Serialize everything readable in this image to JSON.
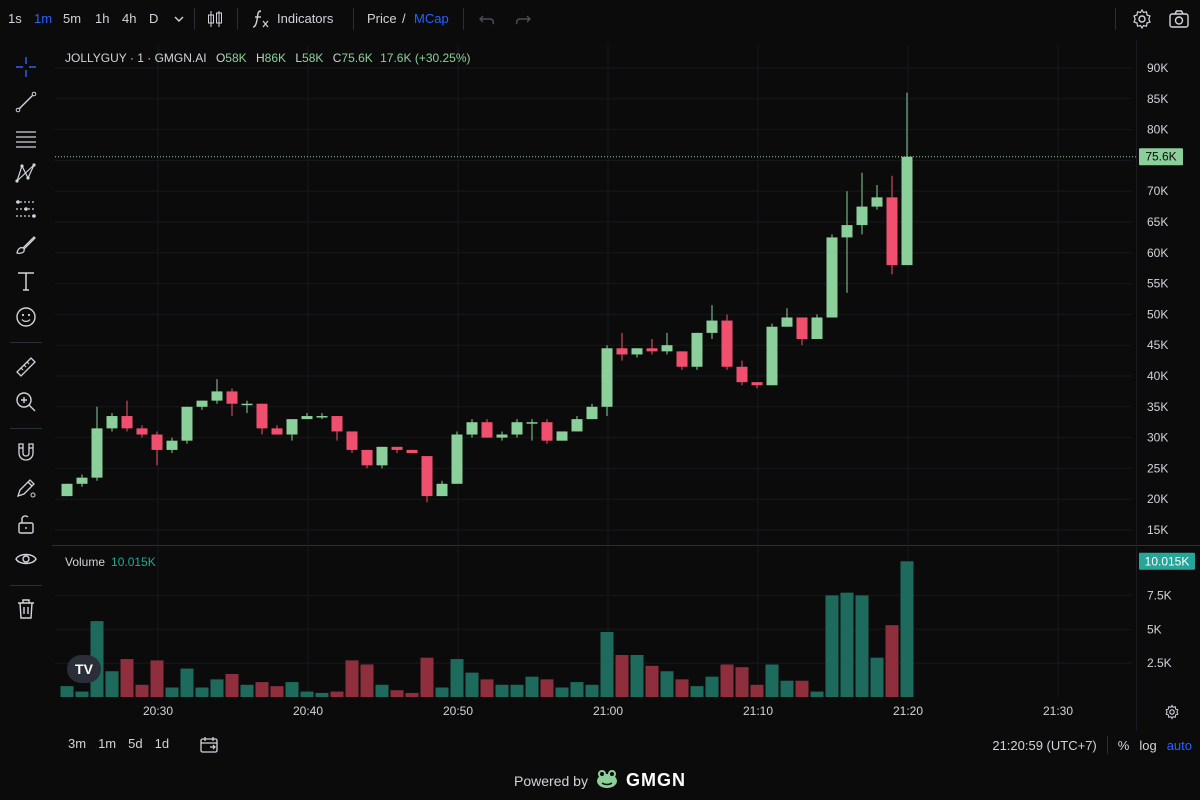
{
  "toolbar": {
    "timeframes": [
      "1s",
      "1m",
      "5m",
      "1h",
      "4h",
      "D"
    ],
    "active_timeframe": "1m",
    "indicators_label": "Indicators",
    "price_label": "Price",
    "price_sep": "/",
    "mcap_label": "MCap"
  },
  "legend": {
    "symbol": "JOLLYGUY · 1 · GMGN.AI",
    "open_key": "O",
    "open": "58K",
    "high_key": "H",
    "high": "86K",
    "low_key": "L",
    "low": "58K",
    "close_key": "C",
    "close": "75.6K",
    "change": "17.6K (+30.25%)"
  },
  "volume_legend": {
    "label": "Volume",
    "value": "10.015K"
  },
  "bottom": {
    "ranges": [
      "3m",
      "1m",
      "5d",
      "1d"
    ],
    "clock": "21:20:59 (UTC+7)",
    "percent": "%",
    "log": "log",
    "auto": "auto"
  },
  "powered": {
    "text": "Powered by",
    "brand": "GMGN"
  },
  "tv_logo": "TV",
  "colors": {
    "up": "#8bd09a",
    "down": "#f0506e",
    "vol_up": "#1e6b5e",
    "vol_down": "#8f2f3d",
    "accent": "#2962ff",
    "background": "#0b0b0b"
  },
  "chart_data": {
    "type": "candlestick",
    "price_axis": {
      "ticks": [
        "15K",
        "20K",
        "25K",
        "30K",
        "35K",
        "40K",
        "45K",
        "50K",
        "55K",
        "60K",
        "65K",
        "70K",
        "75K",
        "80K",
        "85K",
        "90K"
      ],
      "last_label": "75.6K",
      "last_value": 75.6
    },
    "volume_axis": {
      "ticks": [
        "2.5K",
        "5K",
        "7.5K"
      ],
      "last_label": "10.015K",
      "last_value": 10.015
    },
    "time_axis": {
      "ticks": [
        "20:30",
        "20:40",
        "20:50",
        "21:00",
        "21:10",
        "21:20",
        "21:30"
      ]
    },
    "candles": [
      {
        "o": 20.5,
        "h": 22.5,
        "l": 20.5,
        "c": 22.5,
        "v": 0.8
      },
      {
        "o": 22.5,
        "h": 24,
        "l": 22,
        "c": 23.5,
        "v": 0.4
      },
      {
        "o": 23.5,
        "h": 35,
        "l": 23,
        "c": 31.5,
        "v": 5.6
      },
      {
        "o": 31.5,
        "h": 34,
        "l": 31,
        "c": 33.5,
        "v": 1.9
      },
      {
        "o": 33.5,
        "h": 36,
        "l": 31,
        "c": 31.5,
        "v": 2.8
      },
      {
        "o": 31.5,
        "h": 32,
        "l": 30,
        "c": 30.5,
        "v": 0.9
      },
      {
        "o": 30.5,
        "h": 31,
        "l": 25.5,
        "c": 28,
        "v": 2.7
      },
      {
        "o": 28,
        "h": 30,
        "l": 27.5,
        "c": 29.5,
        "v": 0.7
      },
      {
        "o": 29.5,
        "h": 35,
        "l": 29,
        "c": 35,
        "v": 2.1
      },
      {
        "o": 35,
        "h": 36,
        "l": 34.5,
        "c": 36,
        "v": 0.7
      },
      {
        "o": 36,
        "h": 39.5,
        "l": 35.5,
        "c": 37.5,
        "v": 1.3
      },
      {
        "o": 37.5,
        "h": 38,
        "l": 33.5,
        "c": 35.5,
        "v": 1.7
      },
      {
        "o": 35.5,
        "h": 36,
        "l": 34,
        "c": 35.5,
        "v": 0.9
      },
      {
        "o": 35.5,
        "h": 35.5,
        "l": 30.5,
        "c": 31.5,
        "v": 1.1
      },
      {
        "o": 31.5,
        "h": 32,
        "l": 30.5,
        "c": 30.5,
        "v": 0.8
      },
      {
        "o": 30.5,
        "h": 33,
        "l": 29.5,
        "c": 33,
        "v": 1.1
      },
      {
        "o": 33,
        "h": 34,
        "l": 33,
        "c": 33.5,
        "v": 0.4
      },
      {
        "o": 33.5,
        "h": 34,
        "l": 33,
        "c": 33.5,
        "v": 0.3
      },
      {
        "o": 33.5,
        "h": 33.5,
        "l": 29.5,
        "c": 31,
        "v": 0.4
      },
      {
        "o": 31,
        "h": 31,
        "l": 27.5,
        "c": 28,
        "v": 2.7
      },
      {
        "o": 28,
        "h": 28,
        "l": 25,
        "c": 25.5,
        "v": 2.4
      },
      {
        "o": 25.5,
        "h": 28.5,
        "l": 25,
        "c": 28.5,
        "v": 0.9
      },
      {
        "o": 28.5,
        "h": 28.5,
        "l": 27.5,
        "c": 28,
        "v": 0.5
      },
      {
        "o": 28,
        "h": 28,
        "l": 27.5,
        "c": 27.5,
        "v": 0.3
      },
      {
        "o": 27,
        "h": 27,
        "l": 19.5,
        "c": 20.5,
        "v": 2.9
      },
      {
        "o": 20.5,
        "h": 23,
        "l": 20.5,
        "c": 22.5,
        "v": 0.7
      },
      {
        "o": 22.5,
        "h": 31,
        "l": 22.5,
        "c": 30.5,
        "v": 2.8
      },
      {
        "o": 30.5,
        "h": 33,
        "l": 30,
        "c": 32.5,
        "v": 1.8
      },
      {
        "o": 32.5,
        "h": 33,
        "l": 30,
        "c": 30,
        "v": 1.3
      },
      {
        "o": 30,
        "h": 31,
        "l": 29.5,
        "c": 30.5,
        "v": 0.9
      },
      {
        "o": 30.5,
        "h": 33,
        "l": 30,
        "c": 32.5,
        "v": 0.9
      },
      {
        "o": 32.5,
        "h": 33,
        "l": 29.5,
        "c": 32.5,
        "v": 1.5
      },
      {
        "o": 32.5,
        "h": 33,
        "l": 29,
        "c": 29.5,
        "v": 1.3
      },
      {
        "o": 29.5,
        "h": 31,
        "l": 29.5,
        "c": 31,
        "v": 0.7
      },
      {
        "o": 31,
        "h": 33.5,
        "l": 31,
        "c": 33,
        "v": 1.1
      },
      {
        "o": 33,
        "h": 35.5,
        "l": 33,
        "c": 35,
        "v": 0.9
      },
      {
        "o": 35,
        "h": 45,
        "l": 33.5,
        "c": 44.5,
        "v": 4.8
      },
      {
        "o": 44.5,
        "h": 47,
        "l": 42.5,
        "c": 43.5,
        "v": 3.1
      },
      {
        "o": 43.5,
        "h": 44.5,
        "l": 43,
        "c": 44.5,
        "v": 3.1
      },
      {
        "o": 44.5,
        "h": 46,
        "l": 43.5,
        "c": 44,
        "v": 2.3
      },
      {
        "o": 44,
        "h": 47,
        "l": 43.5,
        "c": 45,
        "v": 1.9
      },
      {
        "o": 44,
        "h": 44,
        "l": 41,
        "c": 41.5,
        "v": 1.3
      },
      {
        "o": 41.5,
        "h": 47,
        "l": 41,
        "c": 47,
        "v": 0.8
      },
      {
        "o": 47,
        "h": 51.5,
        "l": 46,
        "c": 49,
        "v": 1.5
      },
      {
        "o": 49,
        "h": 50,
        "l": 41,
        "c": 41.5,
        "v": 2.4
      },
      {
        "o": 41.5,
        "h": 42.5,
        "l": 38.5,
        "c": 39,
        "v": 2.2
      },
      {
        "o": 39,
        "h": 39,
        "l": 38,
        "c": 38.5,
        "v": 0.9
      },
      {
        "o": 38.5,
        "h": 48.5,
        "l": 38.5,
        "c": 48,
        "v": 2.4
      },
      {
        "o": 48,
        "h": 51,
        "l": 48,
        "c": 49.5,
        "v": 1.2
      },
      {
        "o": 49.5,
        "h": 49.5,
        "l": 45,
        "c": 46,
        "v": 1.2
      },
      {
        "o": 46,
        "h": 50,
        "l": 46,
        "c": 49.5,
        "v": 0.4
      },
      {
        "o": 49.5,
        "h": 63,
        "l": 49.5,
        "c": 62.5,
        "v": 7.5
      },
      {
        "o": 62.5,
        "h": 70,
        "l": 53.5,
        "c": 64.5,
        "v": 7.7
      },
      {
        "o": 64.5,
        "h": 73,
        "l": 63,
        "c": 67.5,
        "v": 7.5
      },
      {
        "o": 67.5,
        "h": 71,
        "l": 67,
        "c": 69,
        "v": 2.9
      },
      {
        "o": 69,
        "h": 72.5,
        "l": 56.5,
        "c": 58,
        "v": 5.3
      },
      {
        "o": 58,
        "h": 86,
        "l": 58,
        "c": 75.6,
        "v": 10.015
      }
    ]
  }
}
